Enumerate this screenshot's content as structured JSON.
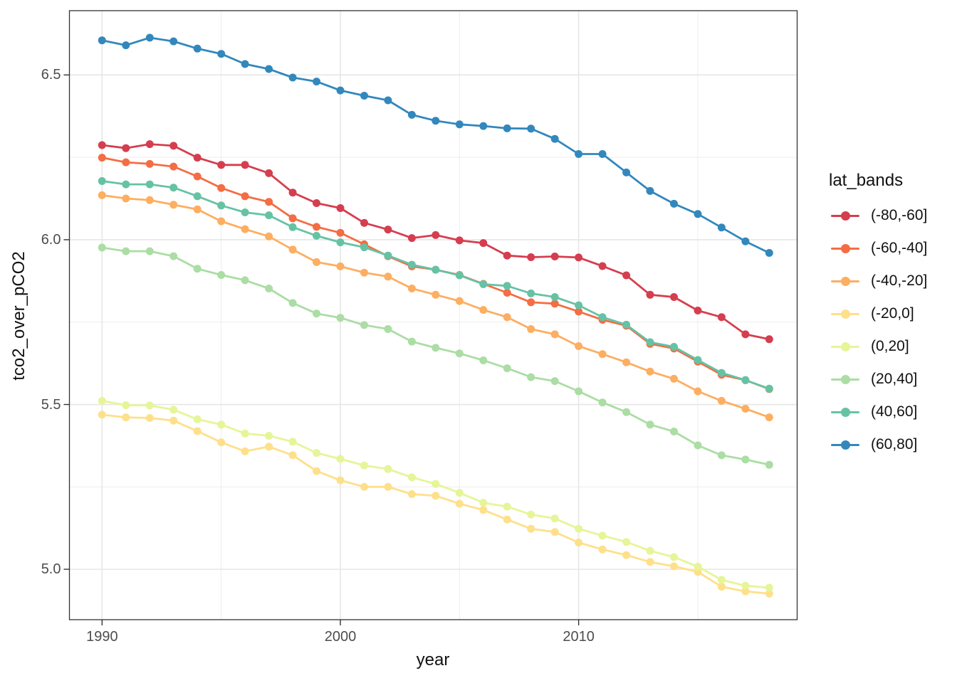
{
  "chart_data": {
    "type": "line",
    "title": "",
    "xlabel": "year",
    "ylabel": "tco2_over_pCO2",
    "legend_title": "lat_bands",
    "legend_position": "right",
    "grid": true,
    "xlim": [
      1988.63,
      2019.17
    ],
    "ylim": [
      4.847,
      6.695
    ],
    "x": [
      1990,
      1991,
      1992,
      1993,
      1994,
      1995,
      1996,
      1997,
      1998,
      1999,
      2000,
      2001,
      2002,
      2003,
      2004,
      2005,
      2006,
      2007,
      2008,
      2009,
      2010,
      2011,
      2012,
      2013,
      2014,
      2015,
      2016,
      2017,
      2018
    ],
    "x_ticks": [
      {
        "value": 1990,
        "label": "1990"
      },
      {
        "value": 2000,
        "label": "2000"
      },
      {
        "value": 2010,
        "label": "2010"
      }
    ],
    "y_ticks": [
      {
        "value": 6.5,
        "label": "6.5"
      },
      {
        "value": 6.0,
        "label": "6.0"
      },
      {
        "value": 5.5,
        "label": "5.5"
      },
      {
        "value": 5.0,
        "label": "5.0"
      }
    ],
    "x_minor": [
      1995,
      2005,
      2015
    ],
    "y_minor": [
      6.25,
      5.75,
      5.25
    ],
    "series": [
      {
        "name": "(-80,-60]",
        "color": "#D53E4F",
        "values": [
          6.287,
          6.278,
          6.29,
          6.285,
          6.249,
          6.227,
          6.227,
          6.202,
          6.143,
          6.111,
          6.096,
          6.051,
          6.031,
          6.005,
          6.014,
          5.998,
          5.99,
          5.952,
          5.947,
          5.949,
          5.946,
          5.92,
          5.892,
          5.833,
          5.826,
          5.785,
          5.765,
          5.713,
          5.698
        ]
      },
      {
        "name": "(-60,-40]",
        "color": "#F46D43",
        "values": [
          6.249,
          6.235,
          6.23,
          6.222,
          6.192,
          6.157,
          6.132,
          6.115,
          6.065,
          6.039,
          6.021,
          5.986,
          5.95,
          5.919,
          5.909,
          5.893,
          5.866,
          5.839,
          5.81,
          5.806,
          5.782,
          5.757,
          5.739,
          5.684,
          5.67,
          5.63,
          5.59,
          5.574,
          5.547
        ]
      },
      {
        "name": "(-40,-20]",
        "color": "#FDAE61",
        "values": [
          6.135,
          6.125,
          6.12,
          6.106,
          6.092,
          6.056,
          6.032,
          6.01,
          5.97,
          5.932,
          5.919,
          5.9,
          5.888,
          5.852,
          5.833,
          5.814,
          5.787,
          5.765,
          5.729,
          5.713,
          5.677,
          5.653,
          5.628,
          5.6,
          5.578,
          5.54,
          5.511,
          5.487,
          5.461
        ]
      },
      {
        "name": "(-20,0]",
        "color": "#FEE08B",
        "values": [
          5.469,
          5.461,
          5.459,
          5.451,
          5.419,
          5.385,
          5.358,
          5.372,
          5.346,
          5.298,
          5.27,
          5.25,
          5.25,
          5.228,
          5.223,
          5.199,
          5.18,
          5.151,
          5.123,
          5.113,
          5.081,
          5.06,
          5.043,
          5.022,
          5.009,
          4.992,
          4.947,
          4.933,
          4.926
        ]
      },
      {
        "name": "(0,20]",
        "color": "#E6F598",
        "values": [
          5.511,
          5.498,
          5.497,
          5.484,
          5.455,
          5.439,
          5.412,
          5.405,
          5.387,
          5.353,
          5.335,
          5.315,
          5.304,
          5.279,
          5.259,
          5.232,
          5.202,
          5.19,
          5.166,
          5.154,
          5.123,
          5.102,
          5.083,
          5.056,
          5.037,
          5.008,
          4.968,
          4.95,
          4.944
        ]
      },
      {
        "name": "(20,40]",
        "color": "#ABDDA4",
        "values": [
          5.976,
          5.965,
          5.965,
          5.95,
          5.912,
          5.893,
          5.877,
          5.852,
          5.808,
          5.776,
          5.763,
          5.741,
          5.729,
          5.691,
          5.672,
          5.655,
          5.634,
          5.61,
          5.583,
          5.571,
          5.54,
          5.506,
          5.477,
          5.439,
          5.418,
          5.376,
          5.346,
          5.333,
          5.317
        ]
      },
      {
        "name": "(40,60]",
        "color": "#66C2A5",
        "values": [
          6.178,
          6.168,
          6.168,
          6.158,
          6.132,
          6.104,
          6.083,
          6.074,
          6.038,
          6.012,
          5.992,
          5.977,
          5.952,
          5.924,
          5.909,
          5.892,
          5.865,
          5.86,
          5.837,
          5.826,
          5.801,
          5.765,
          5.742,
          5.689,
          5.675,
          5.635,
          5.596,
          5.574,
          5.548
        ]
      },
      {
        "name": "(60,80]",
        "color": "#3288BD",
        "values": [
          6.605,
          6.59,
          6.613,
          6.602,
          6.58,
          6.564,
          6.533,
          6.518,
          6.492,
          6.48,
          6.453,
          6.437,
          6.423,
          6.379,
          6.361,
          6.35,
          6.345,
          6.338,
          6.337,
          6.306,
          6.26,
          6.26,
          6.204,
          6.148,
          6.109,
          6.078,
          6.037,
          5.995,
          5.96
        ]
      }
    ],
    "style": {
      "panel_border_color": "#333333",
      "grid_major_color": "#e6e6e6",
      "grid_minor_color": "#ececec",
      "tick_mark_color": "#333333",
      "background": "#ffffff"
    }
  }
}
